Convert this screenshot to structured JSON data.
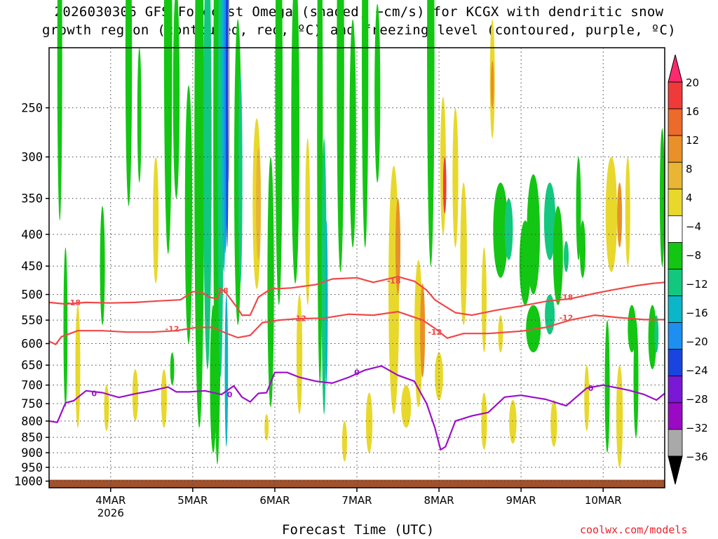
{
  "title_line1": "2026030306 GFS Forecast Omega (shaded, −cm/s) for KCGX with dendritic snow",
  "title_line2": "growth region (contoured, red, ºC) and freezing level (contoured, purple, ºC)",
  "credit": "coolwx.com/models",
  "chart_data": {
    "type": "heatmap",
    "xlabel": "Forecast Time (UTC)",
    "ylabel": "",
    "x_ticks": [
      {
        "label": "4MAR",
        "sub": "2026",
        "day": 4.0
      },
      {
        "label": "5MAR",
        "sub": "",
        "day": 5.0
      },
      {
        "label": "6MAR",
        "sub": "",
        "day": 6.0
      },
      {
        "label": "7MAR",
        "sub": "",
        "day": 7.0
      },
      {
        "label": "8MAR",
        "sub": "",
        "day": 8.0
      },
      {
        "label": "9MAR",
        "sub": "",
        "day": 9.0
      },
      {
        "label": "10MAR",
        "sub": "",
        "day": 10.0
      }
    ],
    "x_range_day": [
      3.25,
      10.75
    ],
    "y_scale": "log-pressure",
    "y_ticks_hpa": [
      250,
      300,
      350,
      400,
      450,
      500,
      550,
      600,
      650,
      700,
      750,
      800,
      850,
      900,
      950,
      1000
    ],
    "y_range_hpa": [
      200,
      1025
    ],
    "grid": true,
    "colorbar": {
      "labels": [
        "20",
        "16",
        "12",
        "8",
        "4",
        "−4",
        "−8",
        "−12",
        "−16",
        "−20",
        "−24",
        "−28",
        "−32",
        "−36"
      ],
      "colors": [
        "#ff2a6e",
        "#f03a3a",
        "#ec6a2a",
        "#e99028",
        "#e8b634",
        "#e8d82c",
        "#ffffff",
        "#13c613",
        "#12c87e",
        "#0ab6c8",
        "#1c8ff0",
        "#1a44e0",
        "#7a18d6",
        "#9a0ac4",
        "#a9a9a9",
        "#000000"
      ]
    },
    "omega_legend_color_for_cold_contours": "#f04848",
    "freezing_color": "#9b10c8",
    "ground_color": "#a0522d",
    "contours": [
      {
        "name": "-18",
        "color": "#f04848",
        "points": [
          [
            3.25,
            515
          ],
          [
            3.45,
            518
          ],
          [
            3.7,
            515
          ],
          [
            4.0,
            516
          ],
          [
            4.3,
            515
          ],
          [
            4.6,
            512
          ],
          [
            4.85,
            510
          ],
          [
            5.0,
            495
          ],
          [
            5.1,
            495
          ],
          [
            5.2,
            505
          ],
          [
            5.3,
            508
          ],
          [
            5.35,
            490
          ],
          [
            5.4,
            496
          ],
          [
            5.55,
            527
          ],
          [
            5.6,
            540
          ],
          [
            5.7,
            540
          ],
          [
            5.8,
            505
          ],
          [
            5.95,
            490
          ],
          [
            6.2,
            488
          ],
          [
            6.5,
            482
          ],
          [
            6.7,
            472
          ],
          [
            7.0,
            470
          ],
          [
            7.2,
            478
          ],
          [
            7.5,
            468
          ],
          [
            7.7,
            476
          ],
          [
            7.85,
            492
          ],
          [
            7.95,
            510
          ],
          [
            8.05,
            520
          ],
          [
            8.2,
            535
          ],
          [
            8.4,
            540
          ],
          [
            8.7,
            530
          ],
          [
            9.0,
            522
          ],
          [
            9.3,
            513
          ],
          [
            9.6,
            508
          ],
          [
            9.9,
            498
          ],
          [
            10.1,
            492
          ],
          [
            10.4,
            484
          ],
          [
            10.6,
            480
          ],
          [
            10.75,
            478
          ]
        ],
        "labels": [
          [
            3.55,
            515
          ],
          [
            5.35,
            493
          ],
          [
            7.45,
            475
          ],
          [
            9.55,
            505
          ]
        ]
      },
      {
        "name": "-12",
        "color": "#f04848",
        "points": [
          [
            3.25,
            595
          ],
          [
            3.33,
            602
          ],
          [
            3.4,
            585
          ],
          [
            3.6,
            572
          ],
          [
            3.9,
            572
          ],
          [
            4.2,
            575
          ],
          [
            4.5,
            575
          ],
          [
            4.8,
            572
          ],
          [
            5.05,
            565
          ],
          [
            5.25,
            565
          ],
          [
            5.4,
            577
          ],
          [
            5.55,
            587
          ],
          [
            5.7,
            582
          ],
          [
            5.85,
            555
          ],
          [
            6.05,
            550
          ],
          [
            6.3,
            547
          ],
          [
            6.6,
            546
          ],
          [
            6.9,
            538
          ],
          [
            7.2,
            540
          ],
          [
            7.5,
            533
          ],
          [
            7.8,
            550
          ],
          [
            7.95,
            567
          ],
          [
            8.1,
            588
          ],
          [
            8.3,
            578
          ],
          [
            8.6,
            578
          ],
          [
            9.0,
            573
          ],
          [
            9.3,
            565
          ],
          [
            9.6,
            550
          ],
          [
            9.9,
            540
          ],
          [
            10.2,
            545
          ],
          [
            10.5,
            549
          ],
          [
            10.75,
            549
          ]
        ],
        "labels": [
          [
            4.75,
            568
          ],
          [
            6.3,
            546
          ],
          [
            7.95,
            575
          ],
          [
            9.55,
            545
          ]
        ]
      },
      {
        "name": "0",
        "color": "#9b10c8",
        "points": [
          [
            3.25,
            800
          ],
          [
            3.35,
            804
          ],
          [
            3.45,
            748
          ],
          [
            3.55,
            742
          ],
          [
            3.7,
            715
          ],
          [
            3.9,
            720
          ],
          [
            4.1,
            733
          ],
          [
            4.3,
            723
          ],
          [
            4.5,
            715
          ],
          [
            4.7,
            705
          ],
          [
            4.8,
            718
          ],
          [
            4.95,
            718
          ],
          [
            5.15,
            715
          ],
          [
            5.35,
            725
          ],
          [
            5.5,
            702
          ],
          [
            5.6,
            732
          ],
          [
            5.7,
            745
          ],
          [
            5.8,
            722
          ],
          [
            5.9,
            720
          ],
          [
            6.0,
            668
          ],
          [
            6.15,
            668
          ],
          [
            6.3,
            680
          ],
          [
            6.5,
            690
          ],
          [
            6.7,
            695
          ],
          [
            6.9,
            680
          ],
          [
            7.1,
            662
          ],
          [
            7.3,
            652
          ],
          [
            7.5,
            675
          ],
          [
            7.7,
            690
          ],
          [
            7.85,
            750
          ],
          [
            7.95,
            820
          ],
          [
            8.02,
            890
          ],
          [
            8.08,
            880
          ],
          [
            8.2,
            800
          ],
          [
            8.4,
            785
          ],
          [
            8.6,
            775
          ],
          [
            8.8,
            732
          ],
          [
            9.0,
            727
          ],
          [
            9.3,
            738
          ],
          [
            9.55,
            756
          ],
          [
            9.8,
            708
          ],
          [
            10.0,
            700
          ],
          [
            10.3,
            713
          ],
          [
            10.5,
            725
          ],
          [
            10.65,
            740
          ],
          [
            10.75,
            722
          ]
        ],
        "labels": [
          [
            3.8,
            722
          ],
          [
            5.45,
            725
          ],
          [
            7.0,
            668
          ],
          [
            9.85,
            708
          ]
        ]
      }
    ]
  }
}
